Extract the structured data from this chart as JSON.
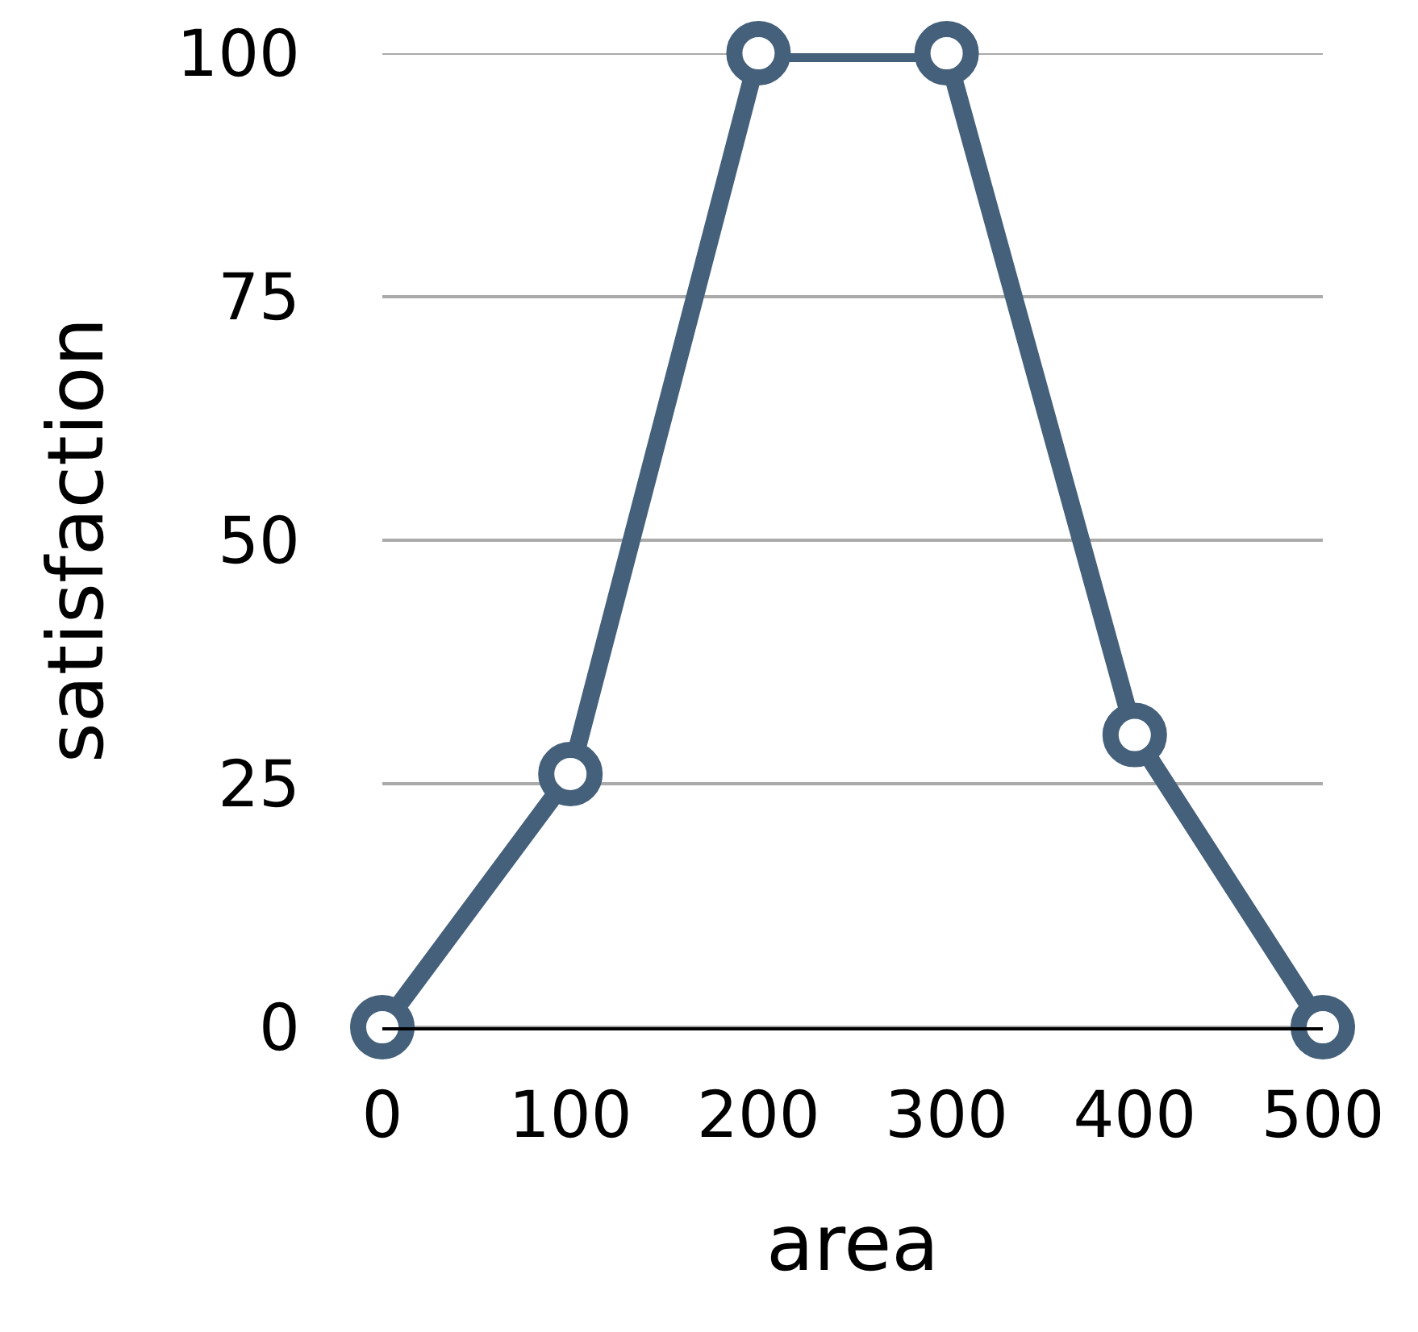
{
  "chart_data": {
    "type": "line",
    "xlabel": "area",
    "ylabel": "satisfaction",
    "x": [
      0,
      100,
      200,
      300,
      400,
      500
    ],
    "series": [
      {
        "color": "#44607a",
        "values": [
          0,
          26,
          100,
          100,
          30,
          0
        ]
      }
    ],
    "xlim": [
      0,
      500
    ],
    "xticks": [
      0,
      100,
      200,
      300,
      400,
      500
    ],
    "ylim": [
      0,
      100
    ],
    "yticks": [
      0,
      25,
      50,
      75,
      100
    ],
    "grid": "y",
    "marker": "circle",
    "line_style": "solid"
  }
}
